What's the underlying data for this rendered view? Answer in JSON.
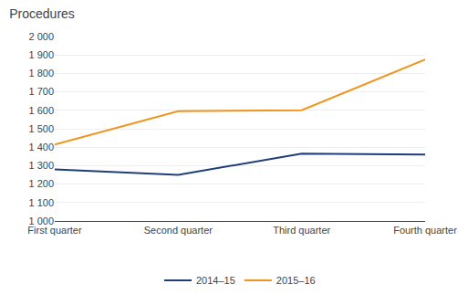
{
  "chart_data": {
    "type": "line",
    "title": "Procedures",
    "categories": [
      "First quarter",
      "Second quarter",
      "Third quarter",
      "Fourth quarter"
    ],
    "series": [
      {
        "name": "2014–15",
        "color": "#1f3d7a",
        "values": [
          1280,
          1250,
          1365,
          1360
        ]
      },
      {
        "name": "2015–16",
        "color": "#f0941e",
        "values": [
          1415,
          1595,
          1600,
          1875
        ]
      }
    ],
    "ylim": [
      1000,
      2000
    ],
    "yticks": [
      {
        "value": 1000,
        "label": "1 000"
      },
      {
        "value": 1100,
        "label": "1 100"
      },
      {
        "value": 1200,
        "label": "1 200"
      },
      {
        "value": 1300,
        "label": "1 300"
      },
      {
        "value": 1400,
        "label": "1 400"
      },
      {
        "value": 1500,
        "label": "1 500"
      },
      {
        "value": 1600,
        "label": "1 600"
      },
      {
        "value": 1700,
        "label": "1 700"
      },
      {
        "value": 1800,
        "label": "1 800"
      },
      {
        "value": 1900,
        "label": "1 900"
      },
      {
        "value": 2000,
        "label": "2 000"
      }
    ],
    "grid": true,
    "legend": "bottom"
  }
}
